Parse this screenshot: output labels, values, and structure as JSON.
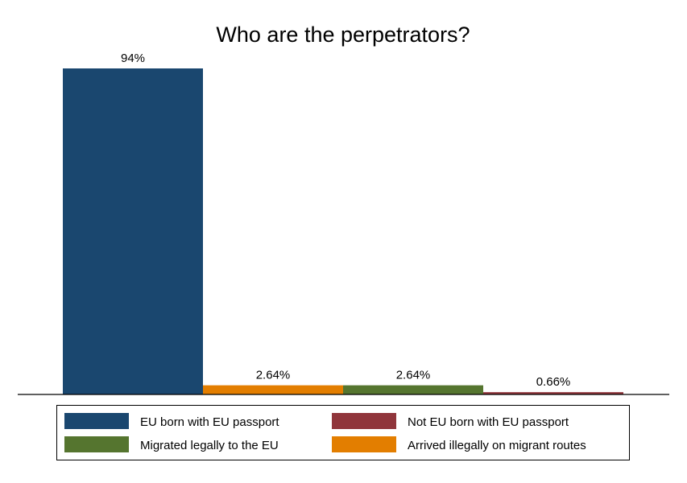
{
  "chart_data": {
    "type": "bar",
    "title": "Who are the perpetrators?",
    "xlabel": "",
    "ylabel": "",
    "ylim": [
      0,
      94
    ],
    "grid": false,
    "categories": [
      "EU born with EU passport",
      "Arrived illegally on migrant routes",
      "Migrated legally to the EU",
      "Not EU born with EU passport"
    ],
    "values": [
      94,
      2.64,
      2.64,
      0.66
    ],
    "data_labels": [
      "94%",
      "2.64%",
      "2.64%",
      "0.66%"
    ],
    "colors": [
      "#1a476f",
      "#e37e00",
      "#55752f",
      "#90353b"
    ],
    "legend": {
      "placement": "bottom",
      "entries": [
        {
          "label": "EU born with EU passport",
          "color": "#1a476f"
        },
        {
          "label": "Not EU born with EU passport",
          "color": "#90353b"
        },
        {
          "label": "Migrated legally to the EU",
          "color": "#55752f"
        },
        {
          "label": "Arrived illegally on migrant routes",
          "color": "#e37e00"
        }
      ]
    }
  }
}
